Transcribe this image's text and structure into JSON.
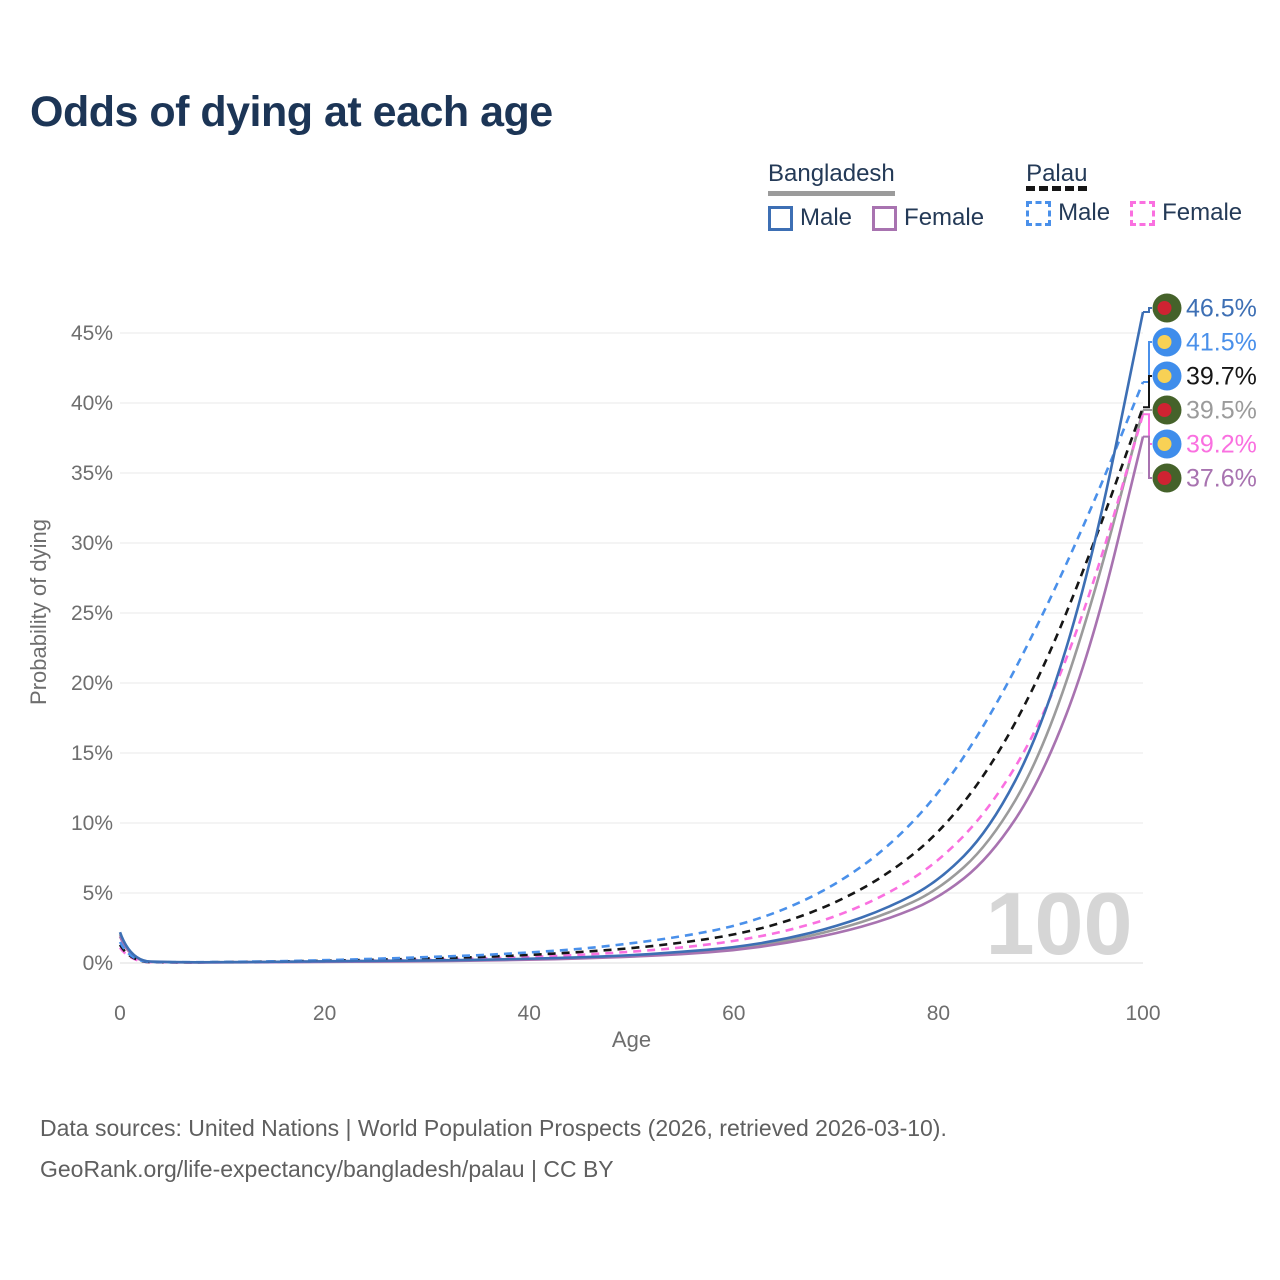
{
  "header": {
    "title": "Odds of dying at each age"
  },
  "legend": {
    "groups": [
      {
        "label": "Bangladesh",
        "line_style": "solid",
        "items": [
          {
            "label": "Male",
            "series": "bangladesh_male"
          },
          {
            "label": "Female",
            "series": "bangladesh_female"
          }
        ]
      },
      {
        "label": "Palau",
        "line_style": "dashed",
        "items": [
          {
            "label": "Male",
            "series": "palau_male"
          },
          {
            "label": "Female",
            "series": "palau_female"
          }
        ]
      }
    ]
  },
  "chart_data": {
    "type": "line",
    "title": "Odds of dying at each age",
    "xlabel": "Age",
    "ylabel": "Probability of dying",
    "xlim": [
      0,
      100
    ],
    "ylim_percent": [
      0,
      47
    ],
    "grid": true,
    "legend_position": "top-right",
    "watermark": "100",
    "x_ticks": [
      0,
      20,
      40,
      60,
      80,
      100
    ],
    "x_tick_labels": [
      "0",
      "20",
      "40",
      "60",
      "80",
      "100"
    ],
    "y_ticks_percent": [
      0,
      5,
      10,
      15,
      20,
      25,
      30,
      35,
      40,
      45
    ],
    "y_tick_labels": [
      "0%",
      "5%",
      "10%",
      "15%",
      "20%",
      "25%",
      "30%",
      "35%",
      "40%",
      "45%"
    ],
    "ages": [
      0,
      1,
      5,
      10,
      15,
      20,
      25,
      30,
      35,
      40,
      45,
      50,
      55,
      60,
      65,
      70,
      75,
      80,
      85,
      90,
      95,
      100
    ],
    "series": [
      {
        "id": "bangladesh_male",
        "country": "Bangladesh",
        "sex": "Male",
        "style": "solid",
        "color": "#3d6fb4",
        "flag": "bangladesh",
        "end_label": "46.5%",
        "values": [
          2.2,
          0.15,
          0.05,
          0.05,
          0.08,
          0.12,
          0.15,
          0.18,
          0.22,
          0.3,
          0.4,
          0.55,
          0.8,
          1.1,
          1.7,
          2.6,
          3.9,
          5.8,
          9.5,
          16.5,
          28.5,
          46.5
        ]
      },
      {
        "id": "palau_male",
        "country": "Palau",
        "sex": "Male",
        "style": "dashed",
        "color": "#4a90ea",
        "flag": "palau",
        "end_label": "41.5%",
        "values": [
          1.5,
          0.1,
          0.05,
          0.07,
          0.12,
          0.2,
          0.3,
          0.42,
          0.55,
          0.75,
          1.0,
          1.4,
          1.9,
          2.6,
          3.8,
          5.6,
          8.2,
          12.0,
          17.5,
          24.5,
          32.5,
          41.5
        ]
      },
      {
        "id": "palau_both",
        "country": "Palau",
        "sex": "Both sexes",
        "style": "dashed",
        "color": "#161616",
        "flag": "palau",
        "end_label": "39.7%",
        "values": [
          1.3,
          0.09,
          0.04,
          0.06,
          0.1,
          0.16,
          0.23,
          0.32,
          0.42,
          0.57,
          0.78,
          1.05,
          1.45,
          2.0,
          2.9,
          4.3,
          6.3,
          9.2,
          13.8,
          20.5,
          29.5,
          39.7
        ]
      },
      {
        "id": "bangladesh_both",
        "country": "Bangladesh",
        "sex": "Both sexes",
        "style": "solid",
        "color": "#9b9b9b",
        "flag": "bangladesh",
        "end_label": "39.5%",
        "values": [
          2.05,
          0.13,
          0.045,
          0.045,
          0.07,
          0.1,
          0.12,
          0.15,
          0.2,
          0.27,
          0.36,
          0.5,
          0.7,
          1.0,
          1.55,
          2.35,
          3.5,
          5.2,
          8.5,
          14.7,
          25.5,
          39.5
        ]
      },
      {
        "id": "palau_female",
        "country": "Palau",
        "sex": "Female",
        "style": "dashed",
        "color": "#fa70e0",
        "flag": "palau",
        "end_label": "39.2%",
        "values": [
          1.1,
          0.08,
          0.035,
          0.05,
          0.08,
          0.12,
          0.17,
          0.23,
          0.31,
          0.42,
          0.58,
          0.8,
          1.1,
          1.55,
          2.25,
          3.3,
          4.9,
          7.2,
          11.0,
          17.0,
          26.5,
          39.2
        ]
      },
      {
        "id": "bangladesh_female",
        "country": "Bangladesh",
        "sex": "Female",
        "style": "solid",
        "color": "#a873b0",
        "flag": "bangladesh",
        "end_label": "37.6%",
        "values": [
          1.9,
          0.12,
          0.04,
          0.04,
          0.06,
          0.08,
          0.1,
          0.13,
          0.17,
          0.23,
          0.32,
          0.45,
          0.62,
          0.9,
          1.4,
          2.1,
          3.1,
          4.6,
          7.5,
          13.0,
          22.5,
          37.6
        ]
      }
    ],
    "flags": {
      "bangladesh": {
        "outer": "#45622a",
        "inner": "#cf2332"
      },
      "palau": {
        "outer": "#3f8deb",
        "inner": "#f8d155"
      }
    }
  },
  "footer": {
    "line1": "Data sources: United Nations | World Population Prospects (2026, retrieved 2026-03-10).",
    "line2": "GeoRank.org/life-expectancy/bangladesh/palau | CC BY"
  }
}
